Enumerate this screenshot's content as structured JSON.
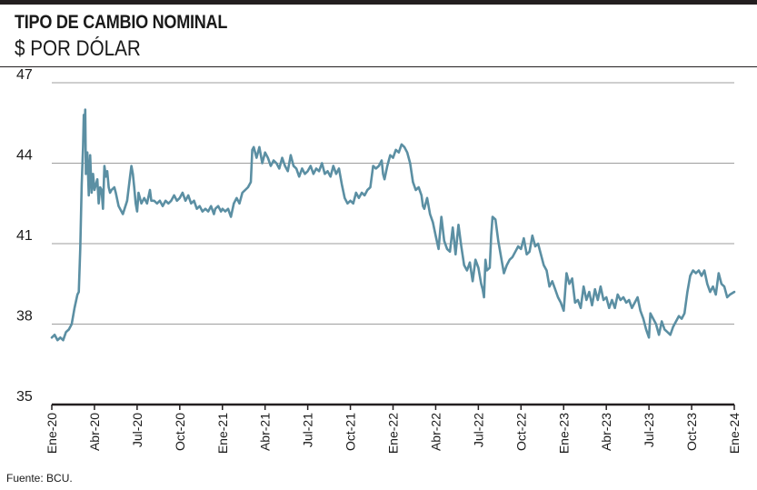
{
  "header": {
    "title": "TIPO DE CAMBIO NOMINAL",
    "subtitle": "$ POR DÓLAR"
  },
  "footer": {
    "source": "Fuente: BCU."
  },
  "colors": {
    "line": "#5b8fa3",
    "grid": "#9e9e9e",
    "axis": "#231f20"
  },
  "chart_data": {
    "type": "line",
    "title": "TIPO DE CAMBIO NOMINAL",
    "subtitle": "$ POR DÓLAR",
    "ylim": [
      35,
      47
    ],
    "yticks": [
      35,
      38,
      41,
      44,
      47
    ],
    "xlim": [
      0,
      48
    ],
    "xticks": [
      {
        "label": "Ene-20",
        "x": 0
      },
      {
        "label": "Abr-20",
        "x": 3
      },
      {
        "label": "Jul-20",
        "x": 6
      },
      {
        "label": "Oct-20",
        "x": 9
      },
      {
        "label": "Ene-21",
        "x": 12
      },
      {
        "label": "Abr-21",
        "x": 15
      },
      {
        "label": "Jul-21",
        "x": 18
      },
      {
        "label": "Oct-21",
        "x": 21
      },
      {
        "label": "Ene-22",
        "x": 24
      },
      {
        "label": "Abr-22",
        "x": 27
      },
      {
        "label": "Jul-22",
        "x": 30
      },
      {
        "label": "Oct-22",
        "x": 33
      },
      {
        "label": "Ene-23",
        "x": 36
      },
      {
        "label": "Abr-23",
        "x": 39
      },
      {
        "label": "Jul-23",
        "x": 42
      },
      {
        "label": "Oct-23",
        "x": 45
      },
      {
        "label": "Ene-24",
        "x": 48
      }
    ],
    "grid": true,
    "series": [
      {
        "values": [
          [
            0.0,
            37.5
          ],
          [
            0.2,
            37.6
          ],
          [
            0.4,
            37.4
          ],
          [
            0.6,
            37.5
          ],
          [
            0.8,
            37.4
          ],
          [
            1.0,
            37.7
          ],
          [
            1.2,
            37.8
          ],
          [
            1.4,
            38.0
          ],
          [
            1.6,
            38.6
          ],
          [
            1.8,
            39.1
          ],
          [
            1.9,
            39.2
          ],
          [
            2.0,
            40.8
          ],
          [
            2.1,
            43.2
          ],
          [
            2.2,
            44.6
          ],
          [
            2.25,
            45.8
          ],
          [
            2.3,
            45.2
          ],
          [
            2.35,
            46.0
          ],
          [
            2.4,
            43.6
          ],
          [
            2.5,
            44.4
          ],
          [
            2.6,
            42.8
          ],
          [
            2.7,
            44.3
          ],
          [
            2.8,
            42.9
          ],
          [
            2.9,
            43.6
          ],
          [
            3.0,
            43.0
          ],
          [
            3.2,
            43.4
          ],
          [
            3.3,
            42.5
          ],
          [
            3.4,
            43.1
          ],
          [
            3.5,
            43.0
          ],
          [
            3.6,
            42.3
          ],
          [
            3.7,
            43.9
          ],
          [
            3.8,
            43.5
          ],
          [
            3.9,
            43.7
          ],
          [
            4.0,
            43.1
          ],
          [
            4.1,
            42.9
          ],
          [
            4.2,
            43.0
          ],
          [
            4.4,
            43.1
          ],
          [
            4.5,
            42.9
          ],
          [
            4.7,
            42.4
          ],
          [
            5.0,
            42.1
          ],
          [
            5.3,
            42.6
          ],
          [
            5.5,
            43.5
          ],
          [
            5.6,
            43.9
          ],
          [
            5.7,
            43.6
          ],
          [
            5.8,
            43.1
          ],
          [
            5.9,
            42.5
          ],
          [
            6.0,
            42.2
          ],
          [
            6.1,
            42.9
          ],
          [
            6.3,
            42.5
          ],
          [
            6.5,
            42.7
          ],
          [
            6.7,
            42.5
          ],
          [
            6.9,
            43.0
          ],
          [
            7.0,
            42.6
          ],
          [
            7.2,
            42.6
          ],
          [
            7.4,
            42.5
          ],
          [
            7.6,
            42.6
          ],
          [
            7.8,
            42.4
          ],
          [
            8.0,
            42.6
          ],
          [
            8.2,
            42.5
          ],
          [
            8.4,
            42.6
          ],
          [
            8.6,
            42.8
          ],
          [
            8.8,
            42.6
          ],
          [
            9.0,
            42.7
          ],
          [
            9.2,
            42.9
          ],
          [
            9.4,
            42.6
          ],
          [
            9.6,
            42.8
          ],
          [
            9.8,
            42.5
          ],
          [
            10.0,
            42.6
          ],
          [
            10.2,
            42.3
          ],
          [
            10.4,
            42.4
          ],
          [
            10.6,
            42.2
          ],
          [
            10.8,
            42.3
          ],
          [
            11.0,
            42.2
          ],
          [
            11.2,
            42.4
          ],
          [
            11.4,
            42.1
          ],
          [
            11.5,
            42.3
          ],
          [
            11.7,
            42.4
          ],
          [
            11.9,
            42.2
          ],
          [
            12.0,
            42.3
          ],
          [
            12.2,
            42.2
          ],
          [
            12.4,
            42.3
          ],
          [
            12.6,
            42.0
          ],
          [
            12.8,
            42.5
          ],
          [
            13.0,
            42.7
          ],
          [
            13.2,
            42.5
          ],
          [
            13.4,
            42.9
          ],
          [
            13.6,
            43.0
          ],
          [
            13.8,
            43.1
          ],
          [
            14.0,
            43.3
          ],
          [
            14.1,
            44.5
          ],
          [
            14.2,
            44.6
          ],
          [
            14.4,
            44.2
          ],
          [
            14.6,
            44.6
          ],
          [
            14.8,
            44.0
          ],
          [
            15.0,
            44.4
          ],
          [
            15.2,
            44.2
          ],
          [
            15.4,
            43.9
          ],
          [
            15.6,
            44.1
          ],
          [
            15.8,
            44.0
          ],
          [
            16.0,
            43.8
          ],
          [
            16.2,
            44.2
          ],
          [
            16.4,
            43.9
          ],
          [
            16.6,
            43.7
          ],
          [
            16.8,
            44.3
          ],
          [
            17.0,
            43.9
          ],
          [
            17.2,
            43.8
          ],
          [
            17.4,
            43.5
          ],
          [
            17.6,
            43.8
          ],
          [
            17.8,
            43.6
          ],
          [
            18.0,
            43.7
          ],
          [
            18.2,
            43.9
          ],
          [
            18.4,
            43.6
          ],
          [
            18.6,
            43.8
          ],
          [
            18.8,
            43.7
          ],
          [
            19.0,
            44.0
          ],
          [
            19.2,
            43.6
          ],
          [
            19.4,
            43.7
          ],
          [
            19.6,
            43.5
          ],
          [
            19.8,
            43.9
          ],
          [
            20.0,
            43.6
          ],
          [
            20.2,
            43.8
          ],
          [
            20.4,
            43.2
          ],
          [
            20.6,
            42.7
          ],
          [
            20.8,
            42.5
          ],
          [
            21.0,
            42.6
          ],
          [
            21.2,
            42.5
          ],
          [
            21.4,
            42.9
          ],
          [
            21.6,
            42.7
          ],
          [
            21.8,
            42.9
          ],
          [
            22.0,
            42.8
          ],
          [
            22.2,
            43.0
          ],
          [
            22.4,
            43.1
          ],
          [
            22.6,
            43.9
          ],
          [
            22.8,
            43.8
          ],
          [
            23.0,
            43.9
          ],
          [
            23.2,
            44.1
          ],
          [
            23.3,
            43.6
          ],
          [
            23.4,
            43.4
          ],
          [
            23.6,
            43.9
          ],
          [
            23.8,
            44.3
          ],
          [
            24.0,
            44.2
          ],
          [
            24.2,
            44.5
          ],
          [
            24.4,
            44.4
          ],
          [
            24.6,
            44.7
          ],
          [
            24.8,
            44.6
          ],
          [
            25.0,
            44.4
          ],
          [
            25.2,
            44.0
          ],
          [
            25.4,
            43.3
          ],
          [
            25.6,
            43.0
          ],
          [
            25.8,
            43.1
          ],
          [
            26.0,
            42.8
          ],
          [
            26.1,
            42.4
          ],
          [
            26.2,
            42.3
          ],
          [
            26.4,
            42.7
          ],
          [
            26.6,
            42.1
          ],
          [
            26.8,
            41.8
          ],
          [
            27.0,
            41.3
          ],
          [
            27.2,
            40.8
          ],
          [
            27.4,
            42.0
          ],
          [
            27.6,
            41.1
          ],
          [
            27.8,
            40.8
          ],
          [
            28.0,
            40.7
          ],
          [
            28.2,
            41.6
          ],
          [
            28.4,
            40.6
          ],
          [
            28.6,
            41.7
          ],
          [
            28.8,
            40.9
          ],
          [
            29.0,
            40.2
          ],
          [
            29.2,
            40.0
          ],
          [
            29.4,
            40.3
          ],
          [
            29.6,
            39.6
          ],
          [
            29.8,
            40.4
          ],
          [
            30.0,
            40.1
          ],
          [
            30.2,
            39.5
          ],
          [
            30.3,
            39.3
          ],
          [
            30.4,
            39.0
          ],
          [
            30.5,
            40.4
          ],
          [
            30.6,
            40.0
          ],
          [
            30.8,
            40.1
          ],
          [
            30.9,
            41.3
          ],
          [
            31.0,
            42.0
          ],
          [
            31.2,
            41.9
          ],
          [
            31.4,
            41.1
          ],
          [
            31.6,
            40.5
          ],
          [
            31.8,
            39.9
          ],
          [
            32.0,
            40.2
          ],
          [
            32.2,
            40.4
          ],
          [
            32.4,
            40.5
          ],
          [
            32.6,
            40.7
          ],
          [
            32.8,
            40.9
          ],
          [
            33.0,
            40.8
          ],
          [
            33.2,
            41.2
          ],
          [
            33.4,
            40.6
          ],
          [
            33.6,
            40.7
          ],
          [
            33.8,
            41.3
          ],
          [
            34.0,
            40.9
          ],
          [
            34.2,
            41.0
          ],
          [
            34.4,
            40.6
          ],
          [
            34.6,
            40.2
          ],
          [
            34.8,
            40.0
          ],
          [
            35.0,
            39.4
          ],
          [
            35.2,
            39.6
          ],
          [
            35.4,
            39.3
          ],
          [
            35.6,
            39.0
          ],
          [
            35.8,
            38.8
          ],
          [
            36.0,
            38.5
          ],
          [
            36.2,
            39.9
          ],
          [
            36.4,
            39.5
          ],
          [
            36.6,
            39.7
          ],
          [
            36.8,
            38.8
          ],
          [
            37.0,
            38.9
          ],
          [
            37.2,
            38.6
          ],
          [
            37.4,
            39.4
          ],
          [
            37.6,
            38.9
          ],
          [
            37.8,
            39.2
          ],
          [
            38.0,
            38.7
          ],
          [
            38.2,
            39.3
          ],
          [
            38.4,
            38.9
          ],
          [
            38.6,
            39.4
          ],
          [
            38.8,
            38.9
          ],
          [
            39.0,
            39.0
          ],
          [
            39.2,
            38.6
          ],
          [
            39.4,
            38.9
          ],
          [
            39.6,
            38.6
          ],
          [
            39.8,
            39.1
          ],
          [
            40.0,
            38.9
          ],
          [
            40.2,
            39.0
          ],
          [
            40.4,
            38.8
          ],
          [
            40.6,
            38.9
          ],
          [
            40.8,
            38.6
          ],
          [
            41.0,
            38.8
          ],
          [
            41.2,
            39.0
          ],
          [
            41.4,
            38.5
          ],
          [
            41.6,
            38.2
          ],
          [
            41.8,
            37.8
          ],
          [
            42.0,
            37.5
          ],
          [
            42.1,
            38.4
          ],
          [
            42.3,
            38.2
          ],
          [
            42.5,
            38.0
          ],
          [
            42.7,
            37.6
          ],
          [
            42.9,
            38.1
          ],
          [
            43.1,
            37.8
          ],
          [
            43.3,
            37.7
          ],
          [
            43.5,
            37.6
          ],
          [
            43.7,
            37.9
          ],
          [
            43.9,
            38.1
          ],
          [
            44.1,
            38.3
          ],
          [
            44.3,
            38.2
          ],
          [
            44.5,
            38.4
          ],
          [
            44.7,
            39.2
          ],
          [
            44.9,
            39.8
          ],
          [
            45.1,
            40.0
          ],
          [
            45.3,
            39.9
          ],
          [
            45.5,
            40.0
          ],
          [
            45.7,
            39.8
          ],
          [
            45.9,
            40.0
          ],
          [
            46.1,
            39.5
          ],
          [
            46.3,
            39.2
          ],
          [
            46.5,
            39.4
          ],
          [
            46.7,
            39.1
          ],
          [
            46.9,
            39.9
          ],
          [
            47.1,
            39.5
          ],
          [
            47.3,
            39.4
          ],
          [
            47.5,
            39.0
          ],
          [
            47.7,
            39.1
          ],
          [
            48.0,
            39.2
          ]
        ]
      }
    ]
  }
}
